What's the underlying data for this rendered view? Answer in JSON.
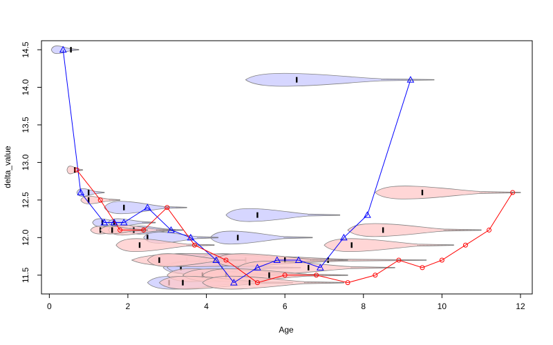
{
  "chart_data": {
    "type": "line",
    "title": "",
    "xlabel": "Age",
    "ylabel": "delta_value",
    "xlim": [
      -0.2,
      12.3
    ],
    "ylim": [
      11.25,
      14.62
    ],
    "x_ticks": [
      0,
      2,
      4,
      6,
      8,
      10,
      12
    ],
    "y_ticks": [
      11.5,
      12.0,
      12.5,
      13.0,
      13.5,
      14.0,
      14.5
    ],
    "x_tick_labels": [
      "0",
      "2",
      "4",
      "6",
      "8",
      "10",
      "12"
    ],
    "y_tick_labels": [
      "11.5",
      "12.0",
      "12.5",
      "13.0",
      "13.5",
      "14.0",
      "14.5"
    ],
    "grid": false,
    "legend": "none",
    "series": [
      {
        "color": "#0000ff",
        "fill": "#c8c8ff",
        "marker": "triangle",
        "x": [
          0.35,
          0.8,
          1.4,
          1.65,
          1.9,
          2.5,
          3.1,
          3.6,
          4.25,
          4.7,
          5.3,
          5.8,
          6.35,
          6.9,
          7.5,
          8.1,
          9.2
        ],
        "y": [
          14.5,
          12.6,
          12.2,
          12.2,
          12.2,
          12.4,
          12.1,
          12.0,
          11.7,
          11.4,
          11.6,
          11.7,
          11.7,
          11.6,
          12.0,
          12.3,
          14.1
        ],
        "violins": [
          {
            "y": 14.5,
            "x0": 0.05,
            "x1": 0.75,
            "median": 0.55
          },
          {
            "y": 14.1,
            "x0": 5.0,
            "x1": 9.8,
            "median": 6.3
          },
          {
            "y": 12.6,
            "x0": 0.7,
            "x1": 1.4,
            "median": 1.0
          },
          {
            "y": 12.4,
            "x0": 1.4,
            "x1": 3.5,
            "median": 1.9
          },
          {
            "y": 12.3,
            "x0": 4.5,
            "x1": 7.4,
            "median": 5.3
          },
          {
            "y": 12.2,
            "x0": 1.1,
            "x1": 2.0,
            "median": 1.35
          },
          {
            "y": 12.2,
            "x0": 1.5,
            "x1": 2.7,
            "median": 1.65
          },
          {
            "y": 12.1,
            "x0": 2.0,
            "x1": 3.4,
            "median": 2.4
          },
          {
            "y": 12.0,
            "x0": 4.1,
            "x1": 6.7,
            "median": 4.8
          },
          {
            "y": 12.0,
            "x0": 2.4,
            "x1": 4.3,
            "median": 2.5
          },
          {
            "y": 11.7,
            "x0": 2.7,
            "x1": 5.6,
            "median": 3.5
          },
          {
            "y": 11.7,
            "x0": 2.6,
            "x1": 6.5,
            "median": 4.0
          },
          {
            "y": 11.7,
            "x0": 3.8,
            "x1": 6.8,
            "median": 5.0
          },
          {
            "y": 11.6,
            "x0": 2.9,
            "x1": 6.2,
            "median": 4.4
          },
          {
            "y": 11.6,
            "x0": 3.0,
            "x1": 6.4,
            "median": 3.35
          },
          {
            "y": 11.4,
            "x0": 2.5,
            "x1": 5.6,
            "median": 3.05
          }
        ]
      },
      {
        "color": "#ff0000",
        "fill": "#ffc8c8",
        "marker": "circle",
        "x": [
          0.7,
          1.3,
          1.8,
          2.4,
          3.0,
          3.7,
          4.5,
          5.3,
          6.0,
          6.8,
          7.6,
          8.3,
          8.9,
          9.5,
          10.0,
          10.6,
          11.2,
          11.8
        ],
        "y": [
          12.9,
          12.5,
          12.1,
          12.1,
          12.4,
          11.9,
          11.7,
          11.4,
          11.5,
          11.5,
          11.4,
          11.5,
          11.7,
          11.6,
          11.7,
          11.9,
          12.1,
          12.6
        ],
        "violins": [
          {
            "y": 12.9,
            "x0": 0.45,
            "x1": 0.85,
            "median": 0.65
          },
          {
            "y": 12.6,
            "x0": 8.3,
            "x1": 12.0,
            "median": 9.5
          },
          {
            "y": 12.5,
            "x0": 0.8,
            "x1": 1.8,
            "median": 1.0
          },
          {
            "y": 12.1,
            "x0": 7.6,
            "x1": 11.0,
            "median": 8.5
          },
          {
            "y": 12.1,
            "x0": 1.05,
            "x1": 2.2,
            "median": 1.3
          },
          {
            "y": 12.1,
            "x0": 1.5,
            "x1": 3.2,
            "median": 2.15
          },
          {
            "y": 12.1,
            "x0": 1.3,
            "x1": 2.5,
            "median": 1.6
          },
          {
            "y": 11.9,
            "x0": 7.0,
            "x1": 10.3,
            "median": 7.7
          },
          {
            "y": 11.9,
            "x0": 1.7,
            "x1": 4.2,
            "median": 2.3
          },
          {
            "y": 11.7,
            "x0": 2.1,
            "x1": 9.6,
            "median": 7.1
          },
          {
            "y": 11.7,
            "x0": 2.5,
            "x1": 5.0,
            "median": 2.8
          },
          {
            "y": 11.7,
            "x0": 4.2,
            "x1": 7.6,
            "median": 6.0
          },
          {
            "y": 11.6,
            "x0": 4.8,
            "x1": 8.8,
            "median": 6.6
          },
          {
            "y": 11.5,
            "x0": 3.0,
            "x1": 6.0,
            "median": 3.9
          },
          {
            "y": 11.5,
            "x0": 3.4,
            "x1": 7.4,
            "median": 4.5
          },
          {
            "y": 11.5,
            "x0": 3.9,
            "x1": 7.6,
            "median": 5.6
          },
          {
            "y": 11.4,
            "x0": 2.8,
            "x1": 6.2,
            "median": 3.4
          },
          {
            "y": 11.4,
            "x0": 3.9,
            "x1": 7.5,
            "median": 5.1
          }
        ]
      }
    ]
  }
}
